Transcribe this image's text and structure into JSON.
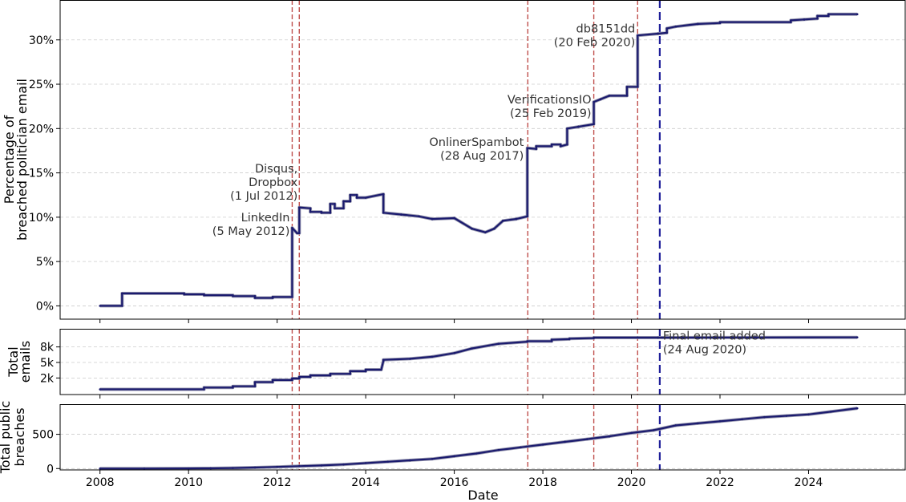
{
  "chart_data": [
    {
      "type": "line",
      "ylabel": [
        "Percentage of",
        "breached politician email"
      ],
      "ylim": [
        -1.5,
        34.5
      ],
      "yticks": [
        0,
        5,
        10,
        15,
        20,
        25,
        30
      ],
      "ytick_labels": [
        "0%",
        "5%",
        "10%",
        "15%",
        "20%",
        "25%",
        "30%"
      ],
      "grid": true,
      "series": [
        {
          "color": "#1a1a6e",
          "x": [
            2008.0,
            2008.5,
            2008.5,
            2009.9,
            2009.9,
            2010.35,
            2010.35,
            2011.0,
            2011.0,
            2011.5,
            2011.5,
            2011.9,
            2011.9,
            2012.34,
            2012.34,
            2012.45,
            2012.5,
            2012.5,
            2012.75,
            2012.75,
            2013.0,
            2013.0,
            2013.2,
            2013.2,
            2013.3,
            2013.3,
            2013.5,
            2013.5,
            2013.65,
            2013.65,
            2013.8,
            2013.8,
            2014.0,
            2014.4,
            2014.4,
            2014.8,
            2014.8,
            2015.2,
            2015.2,
            2015.5,
            2015.5,
            2016.0,
            2016.0,
            2016.4,
            2016.4,
            2016.7,
            2016.7,
            2016.9,
            2016.9,
            2017.1,
            2017.1,
            2017.4,
            2017.4,
            2017.65,
            2017.65,
            2017.85,
            2017.85,
            2018.2,
            2018.2,
            2018.4,
            2018.4,
            2018.55,
            2018.55,
            2018.8,
            2018.8,
            2019.15,
            2019.15,
            2019.3,
            2019.3,
            2019.5,
            2019.5,
            2019.9,
            2019.9,
            2020.14,
            2020.14,
            2020.6,
            2020.6,
            2020.8,
            2020.8,
            2021.0,
            2021.0,
            2021.5,
            2021.5,
            2022.0,
            2022.0,
            2023.6,
            2023.6,
            2023.9,
            2023.9,
            2024.2,
            2024.2,
            2024.45,
            2024.45,
            2025.1
          ],
          "y": [
            0.0,
            0.0,
            1.4,
            1.4,
            1.3,
            1.3,
            1.2,
            1.2,
            1.1,
            1.1,
            0.9,
            0.9,
            1.0,
            1.0,
            8.8,
            8.2,
            8.2,
            11.1,
            11.0,
            10.6,
            10.6,
            10.5,
            10.5,
            11.5,
            11.5,
            11.0,
            11.0,
            11.8,
            11.8,
            12.5,
            12.5,
            12.2,
            12.2,
            12.6,
            10.5,
            10.3,
            10.3,
            10.1,
            10.1,
            9.8,
            9.8,
            9.9,
            9.9,
            8.7,
            8.7,
            8.3,
            8.3,
            8.7,
            8.7,
            9.6,
            9.6,
            9.8,
            9.8,
            10.1,
            17.8,
            17.7,
            18.0,
            18.0,
            18.2,
            18.2,
            18.0,
            18.2,
            20.0,
            20.2,
            20.2,
            20.5,
            23.0,
            23.3,
            23.3,
            23.7,
            23.7,
            23.7,
            24.7,
            24.7,
            30.5,
            30.7,
            30.7,
            30.8,
            31.3,
            31.5,
            31.5,
            31.8,
            31.8,
            31.9,
            32.0,
            32.0,
            32.2,
            32.3,
            32.3,
            32.4,
            32.7,
            32.7,
            32.9,
            32.9
          ]
        }
      ],
      "annotations": [
        {
          "lines": [
            "LinkedIn",
            "(5 May 2012)"
          ],
          "x": 2012.34,
          "y": 8.0
        },
        {
          "lines": [
            "Disqus,",
            "Dropbox",
            "(1 Jul 2012)"
          ],
          "x": 2012.5,
          "y": 12.0
        },
        {
          "lines": [
            "OnlinerSpambot",
            "(28 Aug 2017)"
          ],
          "x": 2017.66,
          "y": 16.5
        },
        {
          "lines": [
            "VerificationsIO",
            "(25 Feb 2019)"
          ],
          "x": 2019.15,
          "y": 21.3
        },
        {
          "lines": [
            "db8151dd",
            "(20 Feb 2020)"
          ],
          "x": 2020.14,
          "y": 29.3
        }
      ]
    },
    {
      "type": "line",
      "ylabel": [
        "Total",
        "emails"
      ],
      "ylim": [
        -1200,
        11500
      ],
      "yticks": [
        2000,
        5000,
        8000
      ],
      "ytick_labels": [
        "2k",
        "5k",
        "8k"
      ],
      "grid": true,
      "series": [
        {
          "color": "#1a1a6e",
          "x": [
            2008.0,
            2010.35,
            2010.35,
            2011.0,
            2011.0,
            2011.5,
            2011.5,
            2011.9,
            2011.9,
            2012.34,
            2012.34,
            2012.5,
            2012.5,
            2012.75,
            2012.75,
            2013.2,
            2013.2,
            2013.65,
            2013.65,
            2014.0,
            2014.0,
            2014.35,
            2014.4,
            2014.4,
            2015.0,
            2015.5,
            2016.0,
            2016.4,
            2017.0,
            2017.65,
            2017.65,
            2018.2,
            2018.2,
            2018.6,
            2018.6,
            2019.15,
            2019.15,
            2020.14,
            2020.6,
            2025.1
          ],
          "y": [
            -200,
            -200,
            150,
            150,
            400,
            400,
            1200,
            1200,
            1600,
            1600,
            1900,
            1900,
            2200,
            2200,
            2500,
            2500,
            2800,
            2800,
            3300,
            3300,
            3600,
            3600,
            5300,
            5500,
            5700,
            6100,
            6800,
            7700,
            8600,
            9000,
            9100,
            9100,
            9400,
            9500,
            9600,
            9700,
            9800,
            9800,
            9800,
            9850
          ]
        }
      ],
      "annotations": [
        {
          "lines": [
            "Final email added",
            "(24 Aug 2020)"
          ],
          "x": 2020.64,
          "y": 6800
        }
      ]
    },
    {
      "type": "line",
      "xlabel": "Date",
      "ylabel": [
        "Total public",
        "breaches"
      ],
      "ylim": [
        -20,
        940
      ],
      "yticks": [
        0,
        500
      ],
      "ytick_labels": [
        "0",
        "500"
      ],
      "xticks": [
        2008,
        2010,
        2012,
        2014,
        2016,
        2018,
        2020,
        2022,
        2024
      ],
      "xtick_labels": [
        "2008",
        "2010",
        "2012",
        "2014",
        "2016",
        "2018",
        "2020",
        "2022",
        "2024"
      ],
      "xlim": [
        2007.1,
        2026.2
      ],
      "grid": true,
      "series": [
        {
          "color": "#1a1a6e",
          "x": [
            2008.0,
            2009.0,
            2010.0,
            2010.5,
            2011.0,
            2011.5,
            2012.0,
            2012.5,
            2013.0,
            2013.5,
            2014.0,
            2014.5,
            2015.0,
            2015.5,
            2016.0,
            2016.5,
            2017.0,
            2017.5,
            2018.0,
            2018.5,
            2019.0,
            2019.5,
            2020.0,
            2020.5,
            2021.0,
            2021.5,
            2022.0,
            2022.5,
            2023.0,
            2023.5,
            2024.0,
            2024.5,
            2025.1
          ],
          "y": [
            0,
            0,
            2,
            4,
            8,
            15,
            25,
            35,
            45,
            60,
            80,
            100,
            120,
            140,
            180,
            220,
            270,
            310,
            350,
            390,
            430,
            470,
            520,
            560,
            630,
            660,
            690,
            720,
            750,
            770,
            790,
            830,
            880
          ]
        }
      ],
      "annotations": []
    }
  ],
  "event_lines": [
    {
      "x": 2012.34,
      "color": "#c0504d"
    },
    {
      "x": 2012.5,
      "color": "#c0504d"
    },
    {
      "x": 2017.66,
      "color": "#c0504d"
    },
    {
      "x": 2019.15,
      "color": "#c0504d"
    },
    {
      "x": 2020.14,
      "color": "#c0504d"
    }
  ],
  "final_email_line": {
    "x": 2020.64,
    "color": "#1f1f99"
  }
}
